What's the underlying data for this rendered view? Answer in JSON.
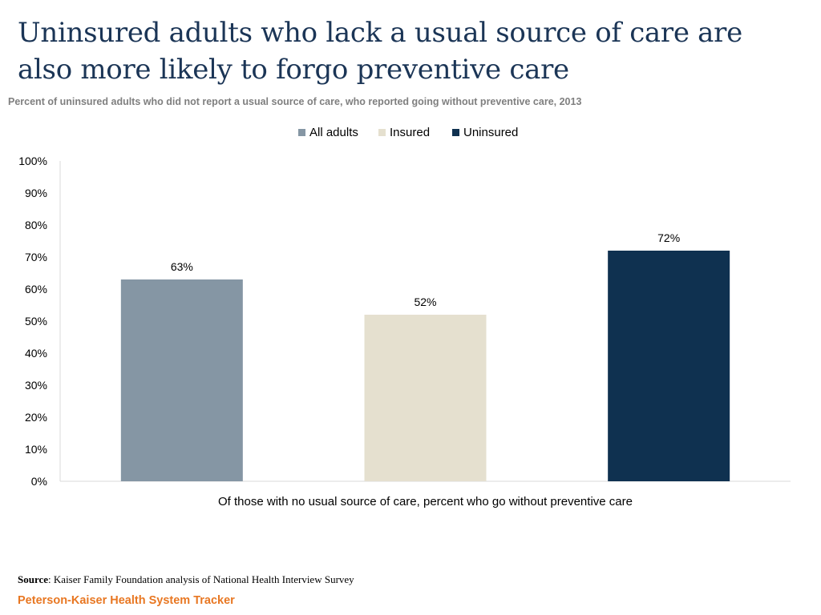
{
  "header": {
    "title": "Uninsured adults who lack a usual source of care are also more likely to forgo preventive care",
    "subtitle": "Percent of uninsured adults who did not report a usual source of care, who reported going without preventive care, 2013"
  },
  "footer": {
    "source_label": "Source",
    "source_text": ": Kaiser Family Foundation analysis of National Health Interview Survey",
    "brand": "Peterson-Kaiser Health System Tracker"
  },
  "colors": {
    "title": "#1b3556",
    "subtitle": "#7f7f7f",
    "brand": "#e87722",
    "all_adults": "#8596a4",
    "insured": "#e5e0cf",
    "uninsured": "#0f3150",
    "axis": "#d9d9d9"
  },
  "chart_data": {
    "type": "bar",
    "title": "",
    "xlabel": "Of those with no usual source of care, percent who go without preventive care",
    "ylabel": "",
    "ylim": [
      0,
      100
    ],
    "yticks": [
      "0%",
      "10%",
      "20%",
      "30%",
      "40%",
      "50%",
      "60%",
      "70%",
      "80%",
      "90%",
      "100%"
    ],
    "grid": false,
    "legend_position": "top-center",
    "categories": [
      "Of those with no usual source of care, percent who go without preventive care"
    ],
    "series": [
      {
        "name": "All adults",
        "values": [
          63
        ],
        "label": "63%",
        "color": "#8596a4"
      },
      {
        "name": "Insured",
        "values": [
          52
        ],
        "label": "52%",
        "color": "#e5e0cf"
      },
      {
        "name": "Uninsured",
        "values": [
          72
        ],
        "label": "72%",
        "color": "#0f3150"
      }
    ]
  }
}
